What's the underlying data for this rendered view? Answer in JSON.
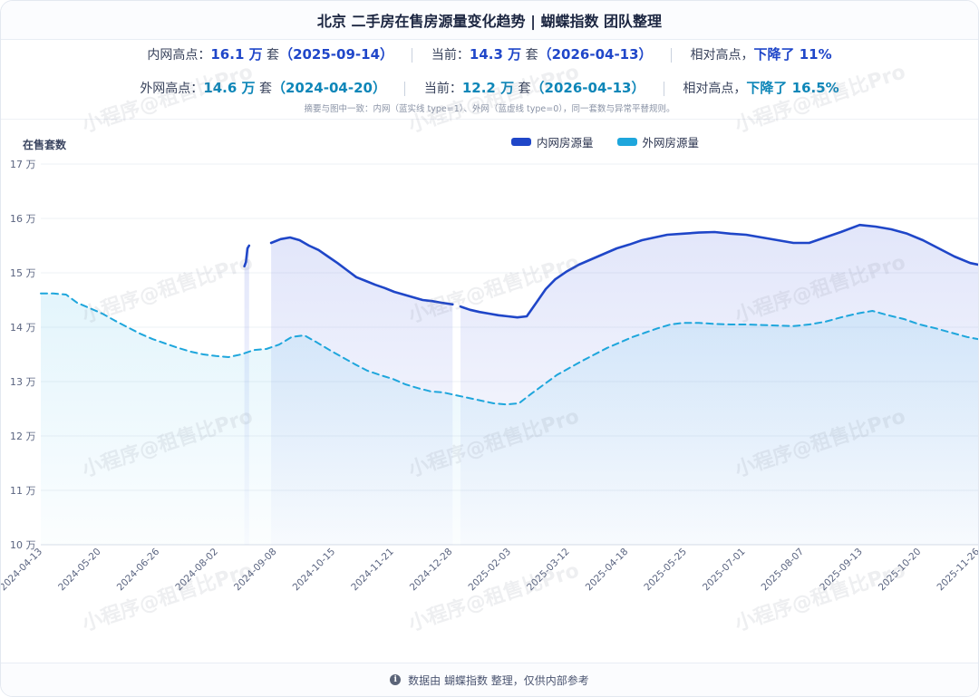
{
  "header": {
    "title": "北京 二手房在售房源量变化趋势 | 蝴蝶指数 团队整理"
  },
  "summary": {
    "inner": {
      "label_high": "内网高点：",
      "high_value": "16.1 万",
      "unit": " 套",
      "high_date": "（2025-09-14）",
      "label_cur": "当前：",
      "cur_value": "14.3 万",
      "cur_date": "（2026-04-13）",
      "label_rel": "相对高点，",
      "drop": "下降了 11%"
    },
    "outer": {
      "label_high": "外网高点：",
      "high_value": "14.6 万",
      "unit": " 套",
      "high_date": "（2024-04-20）",
      "label_cur": "当前：",
      "cur_value": "12.2 万",
      "cur_date": "（2026-04-13）",
      "label_rel": "相对高点，",
      "drop": "下降了 16.5%"
    },
    "note": "摘要与图中一致：内网（蓝实线 type=1）、外网（蓝虚线 type=0），同一套数与异常平替规则。"
  },
  "colors": {
    "inner": "#1f46c8",
    "outer": "#1ea6dc"
  },
  "watermark": "小程序@租售比Pro",
  "footer": {
    "text": "数据由 蝴蝶指数 整理，仅供内部参考"
  },
  "chart_data": {
    "type": "line",
    "ylabel": "在售套数",
    "ylim": [
      10,
      17
    ],
    "yticks": [
      "10 万",
      "11 万",
      "12 万",
      "13 万",
      "14 万",
      "15 万",
      "16 万",
      "17 万"
    ],
    "xlim": [
      "2024-04-13",
      "2025-11-28"
    ],
    "xticks": [
      "2024-04-13",
      "2024-05-20",
      "2024-06-26",
      "2024-08-02",
      "2024-09-08",
      "2024-10-15",
      "2024-11-21",
      "2024-12-28",
      "2025-02-03",
      "2025-03-12",
      "2025-04-18",
      "2025-05-25",
      "2025-07-01",
      "2025-08-07",
      "2025-09-13",
      "2025-10-20",
      "2025-11-26"
    ],
    "grid": true,
    "legend": "top",
    "series": [
      {
        "name": "内网房源量",
        "style": "solid",
        "segments": [
          [
            [
              "2024-08-20",
              15.12
            ],
            [
              "2024-08-21",
              15.2
            ],
            [
              "2024-08-22",
              15.45
            ],
            [
              "2024-08-23",
              15.5
            ]
          ],
          [
            [
              "2024-09-06",
              15.55
            ],
            [
              "2024-09-12",
              15.62
            ],
            [
              "2024-09-18",
              15.65
            ],
            [
              "2024-09-24",
              15.6
            ],
            [
              "2024-09-30",
              15.5
            ],
            [
              "2024-10-06",
              15.42
            ],
            [
              "2024-10-12",
              15.3
            ],
            [
              "2024-10-18",
              15.18
            ],
            [
              "2024-10-24",
              15.05
            ],
            [
              "2024-10-30",
              14.92
            ],
            [
              "2024-11-05",
              14.85
            ],
            [
              "2024-11-11",
              14.78
            ],
            [
              "2024-11-17",
              14.72
            ],
            [
              "2024-11-23",
              14.65
            ],
            [
              "2024-11-29",
              14.6
            ],
            [
              "2024-12-05",
              14.55
            ],
            [
              "2024-12-11",
              14.5
            ],
            [
              "2024-12-17",
              14.48
            ],
            [
              "2024-12-23",
              14.45
            ],
            [
              "2024-12-30",
              14.42
            ]
          ],
          [
            [
              "2025-01-04",
              14.38
            ],
            [
              "2025-01-10",
              14.32
            ],
            [
              "2025-01-16",
              14.28
            ],
            [
              "2025-01-22",
              14.25
            ],
            [
              "2025-01-28",
              14.22
            ],
            [
              "2025-02-03",
              14.2
            ],
            [
              "2025-02-09",
              14.18
            ],
            [
              "2025-02-15",
              14.2
            ],
            [
              "2025-02-21",
              14.45
            ],
            [
              "2025-02-27",
              14.7
            ],
            [
              "2025-03-05",
              14.88
            ],
            [
              "2025-03-12",
              15.02
            ],
            [
              "2025-03-20",
              15.15
            ],
            [
              "2025-03-28",
              15.25
            ],
            [
              "2025-04-05",
              15.35
            ],
            [
              "2025-04-13",
              15.45
            ],
            [
              "2025-04-21",
              15.52
            ],
            [
              "2025-04-29",
              15.6
            ],
            [
              "2025-05-07",
              15.65
            ],
            [
              "2025-05-15",
              15.7
            ],
            [
              "2025-05-25",
              15.72
            ],
            [
              "2025-06-04",
              15.74
            ],
            [
              "2025-06-14",
              15.75
            ],
            [
              "2025-06-24",
              15.72
            ],
            [
              "2025-07-04",
              15.7
            ],
            [
              "2025-07-14",
              15.65
            ],
            [
              "2025-07-24",
              15.6
            ],
            [
              "2025-08-03",
              15.55
            ],
            [
              "2025-08-13",
              15.55
            ],
            [
              "2025-08-23",
              15.65
            ],
            [
              "2025-09-02",
              15.75
            ],
            [
              "2025-09-14",
              15.88
            ],
            [
              "2025-09-24",
              15.85
            ],
            [
              "2025-10-04",
              15.8
            ],
            [
              "2025-10-14",
              15.72
            ],
            [
              "2025-10-24",
              15.6
            ],
            [
              "2025-11-03",
              15.45
            ],
            [
              "2025-11-13",
              15.3
            ],
            [
              "2025-11-23",
              15.18
            ],
            [
              "2025-11-28",
              15.15
            ]
          ]
        ]
      },
      {
        "name": "外网房源量",
        "style": "dashed",
        "segments": [
          [
            [
              "2024-04-13",
              14.62
            ],
            [
              "2024-04-21",
              14.62
            ],
            [
              "2024-04-29",
              14.6
            ],
            [
              "2024-05-06",
              14.45
            ],
            [
              "2024-05-14",
              14.35
            ],
            [
              "2024-05-22",
              14.25
            ],
            [
              "2024-05-30",
              14.12
            ],
            [
              "2024-06-07",
              14.0
            ],
            [
              "2024-06-15",
              13.88
            ],
            [
              "2024-06-23",
              13.78
            ],
            [
              "2024-07-01",
              13.7
            ],
            [
              "2024-07-09",
              13.62
            ],
            [
              "2024-07-17",
              13.55
            ],
            [
              "2024-07-25",
              13.5
            ],
            [
              "2024-08-02",
              13.47
            ],
            [
              "2024-08-10",
              13.45
            ],
            [
              "2024-08-18",
              13.5
            ],
            [
              "2024-08-26",
              13.58
            ],
            [
              "2024-09-03",
              13.6
            ],
            [
              "2024-09-11",
              13.68
            ],
            [
              "2024-09-19",
              13.82
            ],
            [
              "2024-09-27",
              13.85
            ],
            [
              "2024-10-05",
              13.72
            ],
            [
              "2024-10-13",
              13.58
            ],
            [
              "2024-10-21",
              13.45
            ],
            [
              "2024-10-29",
              13.32
            ],
            [
              "2024-11-06",
              13.2
            ],
            [
              "2024-11-14",
              13.12
            ],
            [
              "2024-11-22",
              13.05
            ],
            [
              "2024-11-30",
              12.95
            ],
            [
              "2024-12-08",
              12.88
            ],
            [
              "2024-12-16",
              12.82
            ],
            [
              "2024-12-24",
              12.8
            ],
            [
              "2025-01-01",
              12.75
            ],
            [
              "2025-01-09",
              12.7
            ],
            [
              "2025-01-17",
              12.65
            ],
            [
              "2025-01-25",
              12.6
            ],
            [
              "2025-02-02",
              12.58
            ],
            [
              "2025-02-10",
              12.6
            ],
            [
              "2025-02-18",
              12.78
            ],
            [
              "2025-02-26",
              12.95
            ],
            [
              "2025-03-06",
              13.12
            ],
            [
              "2025-03-14",
              13.25
            ],
            [
              "2025-03-22",
              13.38
            ],
            [
              "2025-03-30",
              13.5
            ],
            [
              "2025-04-07",
              13.62
            ],
            [
              "2025-04-15",
              13.72
            ],
            [
              "2025-04-23",
              13.82
            ],
            [
              "2025-05-01",
              13.9
            ],
            [
              "2025-05-09",
              13.98
            ],
            [
              "2025-05-17",
              14.05
            ],
            [
              "2025-05-25",
              14.08
            ],
            [
              "2025-06-04",
              14.08
            ],
            [
              "2025-06-14",
              14.06
            ],
            [
              "2025-06-24",
              14.05
            ],
            [
              "2025-07-04",
              14.05
            ],
            [
              "2025-07-14",
              14.04
            ],
            [
              "2025-07-24",
              14.03
            ],
            [
              "2025-08-03",
              14.02
            ],
            [
              "2025-08-13",
              14.05
            ],
            [
              "2025-08-23",
              14.1
            ],
            [
              "2025-09-02",
              14.18
            ],
            [
              "2025-09-12",
              14.25
            ],
            [
              "2025-09-22",
              14.3
            ],
            [
              "2025-10-02",
              14.22
            ],
            [
              "2025-10-12",
              14.15
            ],
            [
              "2025-10-22",
              14.05
            ],
            [
              "2025-11-01",
              13.98
            ],
            [
              "2025-11-11",
              13.9
            ],
            [
              "2025-11-21",
              13.82
            ],
            [
              "2025-11-28",
              13.78
            ]
          ]
        ]
      }
    ]
  }
}
